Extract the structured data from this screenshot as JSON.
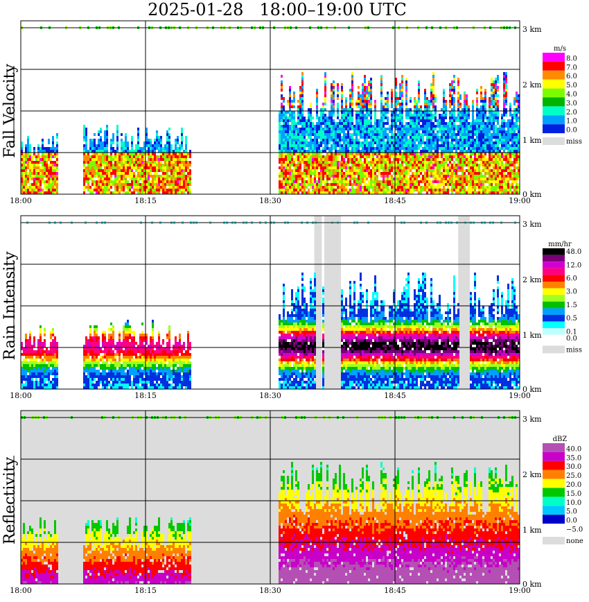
{
  "title": "2025-01-28   18:00–19:00 UTC",
  "x_ticks": [
    "18:00",
    "18:15",
    "18:30",
    "18:45",
    "19:00"
  ],
  "height_labels": [
    "0 km",
    "1 km",
    "2 km",
    "3 km"
  ],
  "colors": {
    "miss": "#dcdcdc",
    "grid": "#000000"
  },
  "panels": [
    {
      "ylabel": "Fall Velocity",
      "unit": "m/s",
      "background": "white",
      "legend": [
        {
          "label": "8.0",
          "color": "#ff00ff"
        },
        {
          "label": "7.0",
          "color": "#ff0000"
        },
        {
          "label": "6.0",
          "color": "#ff8c00"
        },
        {
          "label": "5.0",
          "color": "#ffff00"
        },
        {
          "label": "4.0",
          "color": "#7cfc00"
        },
        {
          "label": "3.0",
          "color": "#00b400"
        },
        {
          "label": "2.0",
          "color": "#00ffc8"
        },
        {
          "label": "1.0",
          "color": "#00a0ff"
        },
        {
          "label": "0.0",
          "color": "#0020e0"
        }
      ],
      "miss_label": "miss"
    },
    {
      "ylabel": "Rain Intensity",
      "unit": "mm/hr",
      "background": "white",
      "legend": [
        {
          "label": "48.0",
          "color": "#000000"
        },
        {
          "label": "",
          "color": "#7a0078"
        },
        {
          "label": "12.0",
          "color": "#d000d0"
        },
        {
          "label": "",
          "color": "#ff0080"
        },
        {
          "label": "6.0",
          "color": "#ff0000"
        },
        {
          "label": "",
          "color": "#ff8000"
        },
        {
          "label": "3.0",
          "color": "#ffff00"
        },
        {
          "label": "",
          "color": "#a0ff20"
        },
        {
          "label": "1.5",
          "color": "#00c000"
        },
        {
          "label": "",
          "color": "#00a0ff"
        },
        {
          "label": "0.5",
          "color": "#0030e0"
        },
        {
          "label": "",
          "color": "#00ffff"
        },
        {
          "label": "0.1",
          "color": "#c0ffff"
        },
        {
          "label": "0.0",
          "color": "#ffffff"
        }
      ],
      "miss_label": "miss"
    },
    {
      "ylabel": "Reflectivity",
      "unit": "dBZ",
      "background": "#dcdcdc",
      "legend": [
        {
          "label": "40.0",
          "color": "#b450b4"
        },
        {
          "label": "35.0",
          "color": "#c800c8"
        },
        {
          "label": "30.0",
          "color": "#ff0000"
        },
        {
          "label": "25.0",
          "color": "#ff8000"
        },
        {
          "label": "20.0",
          "color": "#ffff00"
        },
        {
          "label": "15.0",
          "color": "#00c800"
        },
        {
          "label": "10.0",
          "color": "#00ffc8"
        },
        {
          "label": "5.0",
          "color": "#00c8ff"
        },
        {
          "label": "0.0",
          "color": "#0000c8"
        },
        {
          "label": "−5.0",
          "color": "#ffffff"
        }
      ],
      "miss_label": "none"
    }
  ],
  "chart_data": [
    {
      "type": "heatmap",
      "title": "Fall Velocity",
      "x_range": [
        "18:00",
        "19:00"
      ],
      "y_range_km": [
        0,
        3
      ],
      "unit": "m/s",
      "echo_segments": [
        {
          "start_min": 0,
          "end_min": 4.5,
          "top_km": 1.1
        },
        {
          "start_min": 7.5,
          "end_min": 20.5,
          "top_km": 1.25
        },
        {
          "start_min": 31,
          "end_min": 60,
          "top_km": 2.2
        }
      ]
    },
    {
      "type": "heatmap",
      "title": "Rain Intensity",
      "x_range": [
        "18:00",
        "19:00"
      ],
      "y_range_km": [
        0,
        3
      ],
      "unit": "mm/hr",
      "missing_intervals_min": [
        [
          35.3,
          36.2
        ],
        [
          36.5,
          38.5
        ],
        [
          52.6,
          54.0
        ]
      ],
      "echo_segments": [
        {
          "start_min": 0,
          "end_min": 4.5,
          "top_km": 1.2
        },
        {
          "start_min": 7.5,
          "end_min": 20.5,
          "top_km": 1.25
        },
        {
          "start_min": 31,
          "end_min": 60,
          "top_km": 2.1
        }
      ]
    },
    {
      "type": "heatmap",
      "title": "Reflectivity",
      "x_range": [
        "18:00",
        "19:00"
      ],
      "y_range_km": [
        0,
        3
      ],
      "unit": "dBZ",
      "echo_segments": [
        {
          "start_min": 0,
          "end_min": 4.5,
          "top_km": 1.2
        },
        {
          "start_min": 7.5,
          "end_min": 20.5,
          "top_km": 1.2
        },
        {
          "start_min": 31,
          "end_min": 60,
          "top_km": 2.2
        }
      ]
    }
  ]
}
